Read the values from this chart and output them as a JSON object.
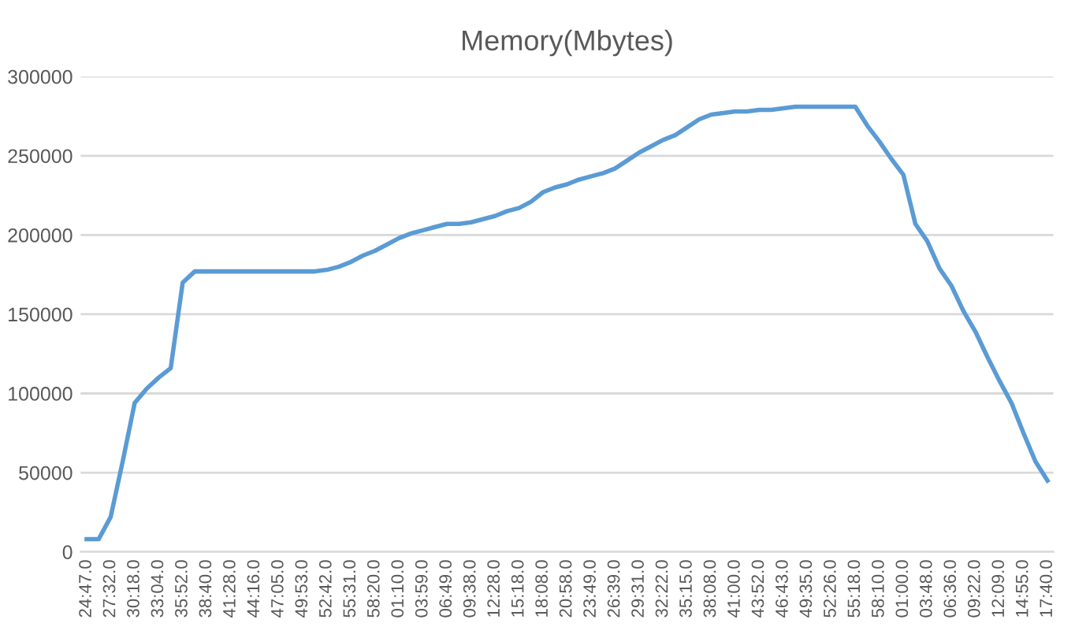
{
  "chart_data": {
    "type": "line",
    "title": "Memory(Mbytes)",
    "categories": [
      "24:47.0",
      null,
      "27:32.0",
      null,
      "30:18.0",
      null,
      "33:04.0",
      null,
      "35:52.0",
      null,
      "38:40.0",
      null,
      "41:28.0",
      null,
      "44:16.0",
      null,
      "47:05.0",
      null,
      "49:53.0",
      null,
      "52:42.0",
      null,
      "55:31.0",
      null,
      "58:20.0",
      null,
      "01:10.0",
      null,
      "03:59.0",
      null,
      "06:49.0",
      null,
      "09:38.0",
      null,
      "12:28.0",
      null,
      "15:18.0",
      null,
      "18:08.0",
      null,
      "20:58.0",
      null,
      "23:49.0",
      null,
      "26:39.0",
      null,
      "29:31.0",
      null,
      "32:22.0",
      null,
      "35:15.0",
      null,
      "38:08.0",
      null,
      "41:00.0",
      null,
      "43:52.0",
      null,
      "46:43.0",
      null,
      "49:35.0",
      null,
      "52:26.0",
      null,
      "55:18.0",
      null,
      "58:10.0",
      null,
      "01:00.0",
      null,
      "03:48.0",
      null,
      "06:36.0",
      null,
      "09:22.0",
      null,
      "12:09.0",
      null,
      "14:55.0",
      null,
      "17:40.0"
    ],
    "series": [
      {
        "color": "#5b9bd5",
        "values": [
          8000,
          8000,
          22000,
          57000,
          94000,
          103000,
          110000,
          116000,
          170000,
          177000,
          177000,
          177000,
          177000,
          177000,
          177000,
          177000,
          177000,
          177000,
          177000,
          177000,
          178000,
          180000,
          183000,
          187000,
          190000,
          194000,
          198000,
          201000,
          203000,
          205000,
          207000,
          207000,
          208000,
          210000,
          212000,
          215000,
          217000,
          221000,
          227000,
          230000,
          232000,
          235000,
          237000,
          239000,
          242000,
          247000,
          252000,
          256000,
          260000,
          263000,
          268000,
          273000,
          276000,
          277000,
          278000,
          278000,
          279000,
          279000,
          280000,
          281000,
          281000,
          281000,
          281000,
          281000,
          281000,
          269000,
          259000,
          248000,
          238000,
          207000,
          196000,
          179000,
          168000,
          152000,
          139000,
          123000,
          108000,
          94000,
          75000,
          57000,
          45000
        ]
      }
    ],
    "ylim": [
      0,
      300000
    ],
    "yticks": [
      0,
      50000,
      100000,
      150000,
      200000,
      250000,
      300000
    ],
    "grid": "y",
    "legend": false,
    "marker": "none",
    "line_style": "solid"
  }
}
